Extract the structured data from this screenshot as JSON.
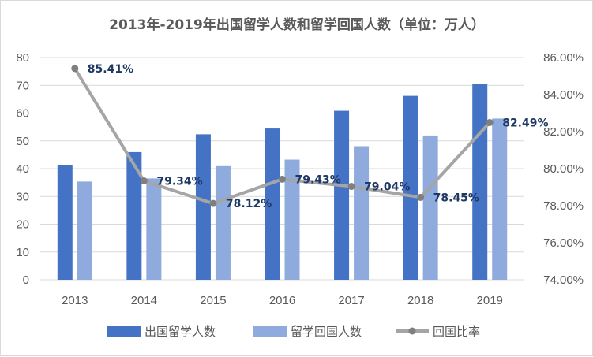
{
  "chart_data": {
    "type": "bar",
    "title": "2013年-2019年出国留学人数和留学回国人数（单位：万人）",
    "categories": [
      "2013",
      "2014",
      "2015",
      "2016",
      "2017",
      "2018",
      "2019"
    ],
    "series": [
      {
        "name": "出国留学人数",
        "type": "bar",
        "axis": "left",
        "color": "#4472c4",
        "values": [
          41.39,
          45.98,
          52.37,
          54.45,
          60.84,
          66.21,
          70.35
        ]
      },
      {
        "name": "留学回国人数",
        "type": "bar",
        "axis": "left",
        "color": "#8faadc",
        "values": [
          35.35,
          36.48,
          40.91,
          43.25,
          48.09,
          51.94,
          58.03
        ]
      },
      {
        "name": "回国比率",
        "type": "line",
        "axis": "right",
        "color": "#a5a5a5",
        "values": [
          85.41,
          79.34,
          78.12,
          79.43,
          79.04,
          78.45,
          82.49
        ]
      }
    ],
    "data_labels": [
      "85.41%",
      "79.34%",
      "78.12%",
      "79.43%",
      "79.04%",
      "78.45%",
      "82.49%"
    ],
    "ylim_left": [
      0,
      80
    ],
    "yticks_left": [
      "0",
      "10",
      "20",
      "30",
      "40",
      "50",
      "60",
      "70",
      "80"
    ],
    "ylim_right": [
      74,
      86
    ],
    "yticks_right": [
      "74.00%",
      "76.00%",
      "78.00%",
      "80.00%",
      "82.00%",
      "84.00%",
      "86.00%"
    ],
    "xlabel": "",
    "ylabel": "",
    "grid": true,
    "legend": "bottom"
  }
}
